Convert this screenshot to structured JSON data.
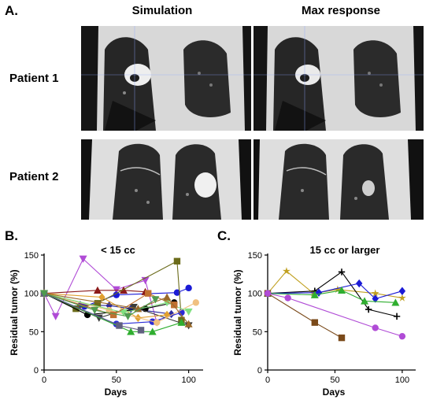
{
  "figure": {
    "panel_a_letter": "A.",
    "panel_b_letter": "B.",
    "panel_c_letter": "C.",
    "col_simulation": "Simulation",
    "col_max_response": "Max response",
    "row_patient1": "Patient 1",
    "row_patient2": "Patient 2"
  },
  "colors": {
    "ct_background": "#1c1c1c",
    "body_soft_tissue": "#dcdcdc",
    "lung_dark": "#2a2a2a",
    "tumor_bright": "#f2f2f2",
    "crosshair": "#8fa8ff"
  },
  "chart_data": [
    {
      "type": "line",
      "title": "< 15 cc",
      "xlabel": "Days",
      "ylabel": "Residual tumor (%)",
      "xlim": [
        0,
        110
      ],
      "ylim": [
        0,
        150
      ],
      "xticks": [
        0,
        50,
        100
      ],
      "yticks": [
        0,
        50,
        100,
        150
      ],
      "grid": false,
      "series": [
        {
          "color": "#b04bd6",
          "marker": "triangle-down",
          "points": [
            [
              0,
              100
            ],
            [
              8,
              70
            ],
            [
              27,
              145
            ],
            [
              50,
              105
            ],
            [
              70,
              117
            ],
            [
              78,
              62
            ]
          ]
        },
        {
          "color": "#1b1bd6",
          "marker": "circle",
          "points": [
            [
              0,
              100
            ],
            [
              28,
              83
            ],
            [
              50,
              98
            ],
            [
              92,
              101
            ],
            [
              100,
              107
            ]
          ]
        },
        {
          "color": "#8b1a1a",
          "marker": "triangle",
          "points": [
            [
              0,
              100
            ],
            [
              37,
              104
            ],
            [
              55,
              104
            ],
            [
              70,
              102
            ]
          ]
        },
        {
          "color": "#2b2b9e",
          "marker": "diamond",
          "points": [
            [
              0,
              100
            ],
            [
              25,
              85
            ],
            [
              45,
              84
            ],
            [
              60,
              80
            ],
            [
              88,
              73
            ]
          ]
        },
        {
          "color": "#6b6b1a",
          "marker": "square",
          "points": [
            [
              0,
              100
            ],
            [
              22,
              80
            ],
            [
              37,
              87
            ],
            [
              92,
              142
            ],
            [
              95,
              65
            ]
          ]
        },
        {
          "color": "#000000",
          "marker": "circle",
          "points": [
            [
              0,
              100
            ],
            [
              30,
              72
            ],
            [
              70,
              80
            ],
            [
              90,
              88
            ]
          ]
        },
        {
          "color": "#3b3b3b",
          "marker": "triangle-down",
          "points": [
            [
              0,
              100
            ],
            [
              38,
              68
            ],
            [
              62,
              82
            ],
            [
              100,
              58
            ]
          ]
        },
        {
          "color": "#2b2bd6",
          "marker": "circle",
          "points": [
            [
              0,
              100
            ],
            [
              50,
              60
            ],
            [
              75,
              63
            ],
            [
              95,
              75
            ]
          ]
        },
        {
          "color": "#2fae2f",
          "marker": "triangle",
          "points": [
            [
              0,
              100
            ],
            [
              60,
              50
            ],
            [
              75,
              50
            ],
            [
              95,
              62
            ]
          ]
        },
        {
          "color": "#e0a030",
          "marker": "diamond",
          "points": [
            [
              0,
              100
            ],
            [
              40,
              95
            ],
            [
              65,
              68
            ],
            [
              85,
              72
            ]
          ]
        },
        {
          "color": "#f0c080",
          "marker": "circle",
          "points": [
            [
              0,
              100
            ],
            [
              45,
              78
            ],
            [
              78,
              62
            ],
            [
              105,
              88
            ]
          ]
        },
        {
          "color": "#80e080",
          "marker": "triangle-down",
          "points": [
            [
              0,
              100
            ],
            [
              55,
              75
            ],
            [
              85,
              88
            ],
            [
              100,
              76
            ]
          ]
        },
        {
          "color": "#c07030",
          "marker": "square",
          "points": [
            [
              0,
              100
            ],
            [
              48,
              72
            ],
            [
              72,
              100
            ],
            [
              90,
              85
            ]
          ]
        },
        {
          "color": "#9a6a2a",
          "marker": "triangle",
          "points": [
            [
              0,
              100
            ],
            [
              65,
              80
            ],
            [
              85,
              95
            ],
            [
              100,
              60
            ]
          ]
        },
        {
          "color": "#606080",
          "marker": "square",
          "points": [
            [
              0,
              100
            ],
            [
              52,
              58
            ],
            [
              67,
              52
            ]
          ]
        },
        {
          "color": "#4f9a4f",
          "marker": "triangle-down",
          "points": [
            [
              0,
              100
            ],
            [
              35,
              78
            ],
            [
              58,
              70
            ],
            [
              77,
              92
            ]
          ]
        }
      ]
    },
    {
      "type": "line",
      "title": "15 cc or larger",
      "xlabel": "Days",
      "ylabel": "Residual tumor (%)",
      "xlim": [
        0,
        110
      ],
      "ylim": [
        0,
        150
      ],
      "xticks": [
        0,
        50,
        100
      ],
      "yticks": [
        0,
        50,
        100,
        150
      ],
      "grid": false,
      "series": [
        {
          "color": "#c0a020",
          "marker": "star",
          "points": [
            [
              0,
              100
            ],
            [
              14,
              129
            ],
            [
              34,
              100
            ],
            [
              52,
              105
            ],
            [
              80,
              100
            ],
            [
              100,
              94
            ]
          ]
        },
        {
          "color": "#000000",
          "marker": "plus",
          "points": [
            [
              0,
              100
            ],
            [
              35,
              103
            ],
            [
              55,
              128
            ],
            [
              75,
              79
            ],
            [
              96,
              70
            ]
          ]
        },
        {
          "color": "#1b1bd6",
          "marker": "diamond",
          "points": [
            [
              0,
              100
            ],
            [
              38,
              101
            ],
            [
              68,
              113
            ],
            [
              80,
              93
            ],
            [
              100,
              103
            ]
          ]
        },
        {
          "color": "#2fae2f",
          "marker": "triangle",
          "points": [
            [
              0,
              100
            ],
            [
              35,
              98
            ],
            [
              55,
              104
            ],
            [
              72,
              90
            ],
            [
              95,
              88
            ]
          ]
        },
        {
          "color": "#7a4a1a",
          "marker": "square",
          "points": [
            [
              0,
              100
            ],
            [
              35,
              62
            ],
            [
              55,
              42
            ]
          ]
        },
        {
          "color": "#b04bd6",
          "marker": "circle",
          "points": [
            [
              0,
              100
            ],
            [
              15,
              94
            ],
            [
              80,
              55
            ],
            [
              100,
              44
            ]
          ]
        }
      ]
    }
  ]
}
